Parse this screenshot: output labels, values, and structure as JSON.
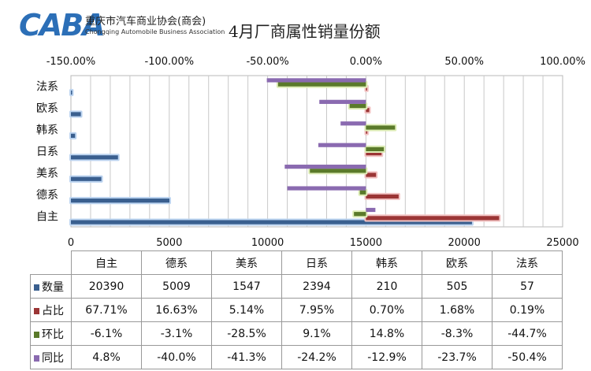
{
  "header": {
    "logo_text": "CABA",
    "org_name_cn": "重庆市汽车商业协会(商会)",
    "org_name_en": "Chongqing Automobile Business Association",
    "title": "4月厂商属性销量份额"
  },
  "chart_data": {
    "type": "bar",
    "orientation": "horizontal",
    "title": "4月厂商属性销量份额",
    "categories": [
      "自主",
      "德系",
      "美系",
      "日系",
      "韩系",
      "欧系",
      "法系"
    ],
    "series": [
      {
        "name": "数量",
        "axis": "bottom",
        "color": "#3a5f8f",
        "values": [
          20390,
          5009,
          1547,
          2394,
          210,
          505,
          57
        ],
        "display": [
          "20390",
          "5009",
          "1547",
          "2394",
          "210",
          "505",
          "57"
        ]
      },
      {
        "name": "占比",
        "axis": "top",
        "color": "#9b3535",
        "values": [
          67.71,
          16.63,
          5.14,
          7.95,
          0.7,
          1.68,
          0.19
        ],
        "display": [
          "67.71%",
          "16.63%",
          "5.14%",
          "7.95%",
          "0.70%",
          "1.68%",
          "0.19%"
        ]
      },
      {
        "name": "环比",
        "axis": "top",
        "color": "#5a7a2a",
        "values": [
          -6.1,
          -3.1,
          -28.5,
          9.1,
          14.8,
          -8.3,
          -44.7
        ],
        "display": [
          "-6.1%",
          "-3.1%",
          "-28.5%",
          "9.1%",
          "14.8%",
          "-8.3%",
          "-44.7%"
        ]
      },
      {
        "name": "同比",
        "axis": "top",
        "color": "#8a6ab0",
        "values": [
          4.8,
          -40.0,
          -41.3,
          -24.2,
          -12.9,
          -23.7,
          -50.4
        ],
        "display": [
          "4.8%",
          "-40.0%",
          "-41.3%",
          "-24.2%",
          "-12.9%",
          "-23.7%",
          "-50.4%"
        ]
      }
    ],
    "top_axis": {
      "ticks": [
        "-150.00%",
        "-100.00%",
        "-50.00%",
        "0.00%",
        "50.00%",
        "100.00%"
      ],
      "range": [
        -150,
        100
      ]
    },
    "bottom_axis": {
      "ticks": [
        "0",
        "5000",
        "10000",
        "15000",
        "20000",
        "25000"
      ],
      "range": [
        0,
        25000
      ]
    },
    "grid": true,
    "legend": "data table below chart"
  }
}
